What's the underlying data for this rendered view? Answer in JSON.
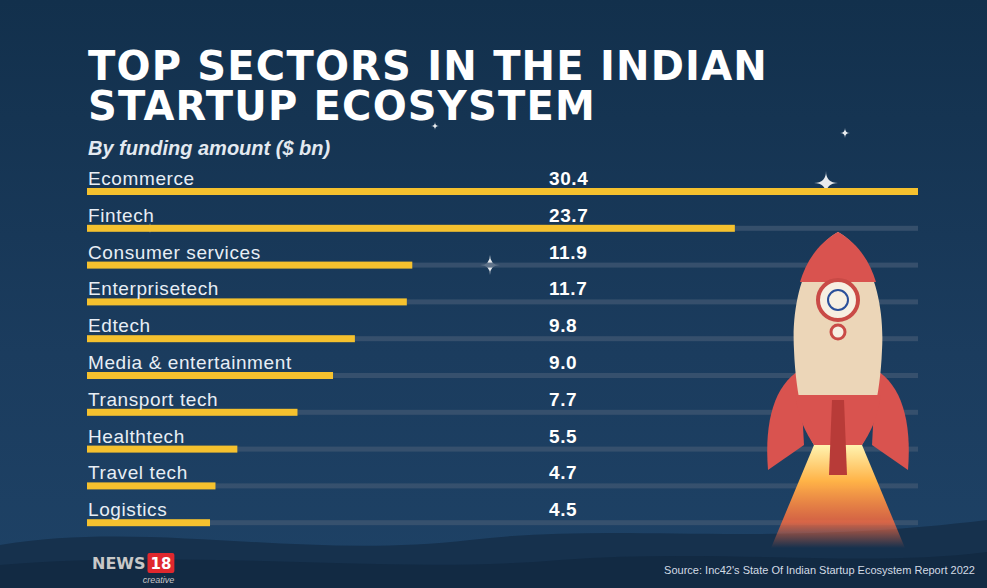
{
  "chart_data": {
    "type": "bar",
    "orientation": "horizontal",
    "title": "TOP SECTORS IN THE INDIAN STARTUP ECOSYSTEM",
    "subtitle": "By funding amount ($ bn)",
    "categories": [
      "Ecommerce",
      "Fintech",
      "Consumer services",
      "Enterprisetech",
      "Edtech",
      "Media & entertainment",
      "Transport tech",
      "Healthtech",
      "Travel tech",
      "Logistics"
    ],
    "values": [
      30.4,
      23.7,
      11.9,
      11.7,
      9.8,
      9.0,
      7.7,
      5.5,
      4.7,
      4.5
    ],
    "value_labels": [
      "30.4",
      "23.7",
      "11.9",
      "11.7",
      "9.8",
      "9.0",
      "7.7",
      "5.5",
      "4.7",
      "4.5"
    ],
    "color": "#f5c12e",
    "xlim": [
      0,
      30.4
    ],
    "data_labels": true,
    "tick_labels": false,
    "source": "Source: Inc42's State Of Indian Startup Ecosystem Report 2022",
    "logo": [
      "NEWS",
      "18",
      "creative"
    ]
  }
}
